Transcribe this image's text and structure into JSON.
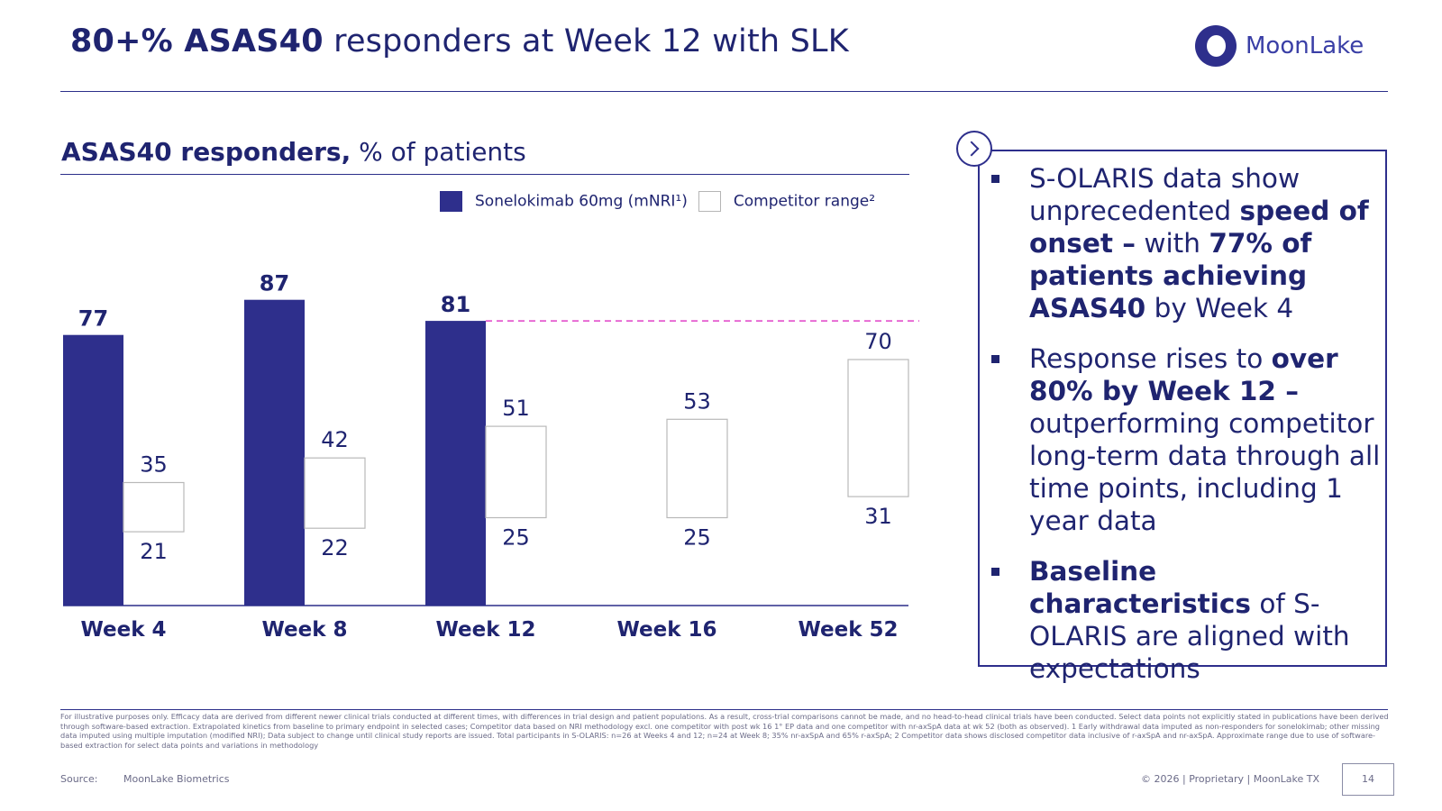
{
  "header": {
    "title_bold": "80+% ASAS40",
    "title_rest": " responders at Week 12 with SLK",
    "logo_text": "MoonLake"
  },
  "chart": {
    "title_bold": "ASAS40 responders,",
    "title_rest": " % of patients",
    "legend": [
      {
        "label": "Sonelokimab 60mg (mNRI¹)",
        "color": "#2e2f8c"
      },
      {
        "label": "Competitor range²",
        "color": "#ffffff"
      }
    ]
  },
  "chart_data": {
    "type": "bar",
    "ylim": [
      0,
      100
    ],
    "grid": false,
    "categories": [
      "Week 4",
      "Week 8",
      "Week 12",
      "Week 16",
      "Week 52"
    ],
    "series": [
      {
        "name": "Sonelokimab 60mg (mNRI¹)",
        "values": [
          77,
          87,
          81,
          null,
          null
        ]
      },
      {
        "name": "Competitor range²",
        "ranges": [
          [
            21,
            35
          ],
          [
            22,
            42
          ],
          [
            25,
            51
          ],
          [
            25,
            53
          ],
          [
            31,
            70
          ]
        ]
      }
    ],
    "reference_line": {
      "value": 81,
      "style": "dashed",
      "color": "#e040c8"
    }
  },
  "callout": {
    "items": [
      {
        "parts": [
          {
            "t": "S-OLARIS data show unprecedented ",
            "b": false
          },
          {
            "t": "speed of onset –",
            "b": true
          },
          {
            "t": " with ",
            "b": false
          },
          {
            "t": "77% of patients achieving ASAS40",
            "b": true
          },
          {
            "t": " by Week 4",
            "b": false
          }
        ]
      },
      {
        "parts": [
          {
            "t": "Response rises to ",
            "b": false
          },
          {
            "t": "over 80% by Week 12 –",
            "b": true
          },
          {
            "t": " outperforming competitor long-term data through all time points, including 1 year data",
            "b": false
          }
        ]
      },
      {
        "parts": [
          {
            "t": "Baseline characteristics",
            "b": true
          },
          {
            "t": " of S-OLARIS are aligned with expectations",
            "b": false
          }
        ]
      }
    ]
  },
  "footer": {
    "footnote": "For illustrative purposes only. Efficacy data are derived from different newer clinical trials conducted at different times, with differences in trial design and patient populations. As a result, cross-trial comparisons cannot be made, and no head-to-head clinical trials have been conducted. Select data points not explicitly stated in publications have been derived through software-based extraction. Extrapolated kinetics from baseline to primary endpoint in selected cases; Competitor data based on NRI methodology excl. one competitor with post wk 16 1° EP data and one competitor with nr-axSpA data at wk 52 (both as observed). 1 Early withdrawal data imputed as non-responders for sonelokimab; other missing data imputed using multiple imputation (modified NRI); Data subject to change until clinical study reports are issued. Total participants in S-OLARIS: n=26 at Weeks 4 and 12; n=24 at Week 8; 35% nr-axSpA and 65% r-axSpA; 2 Competitor data shows disclosed competitor data inclusive of r-axSpA and nr-axSpA. Approximate range due to use of software-based extraction for select data points and variations in methodology",
    "source_label": "Source:",
    "source_value": "MoonLake Biometrics",
    "copyright": "© 2026  |  Proprietary  |  MoonLake TX",
    "page_number": "14"
  }
}
